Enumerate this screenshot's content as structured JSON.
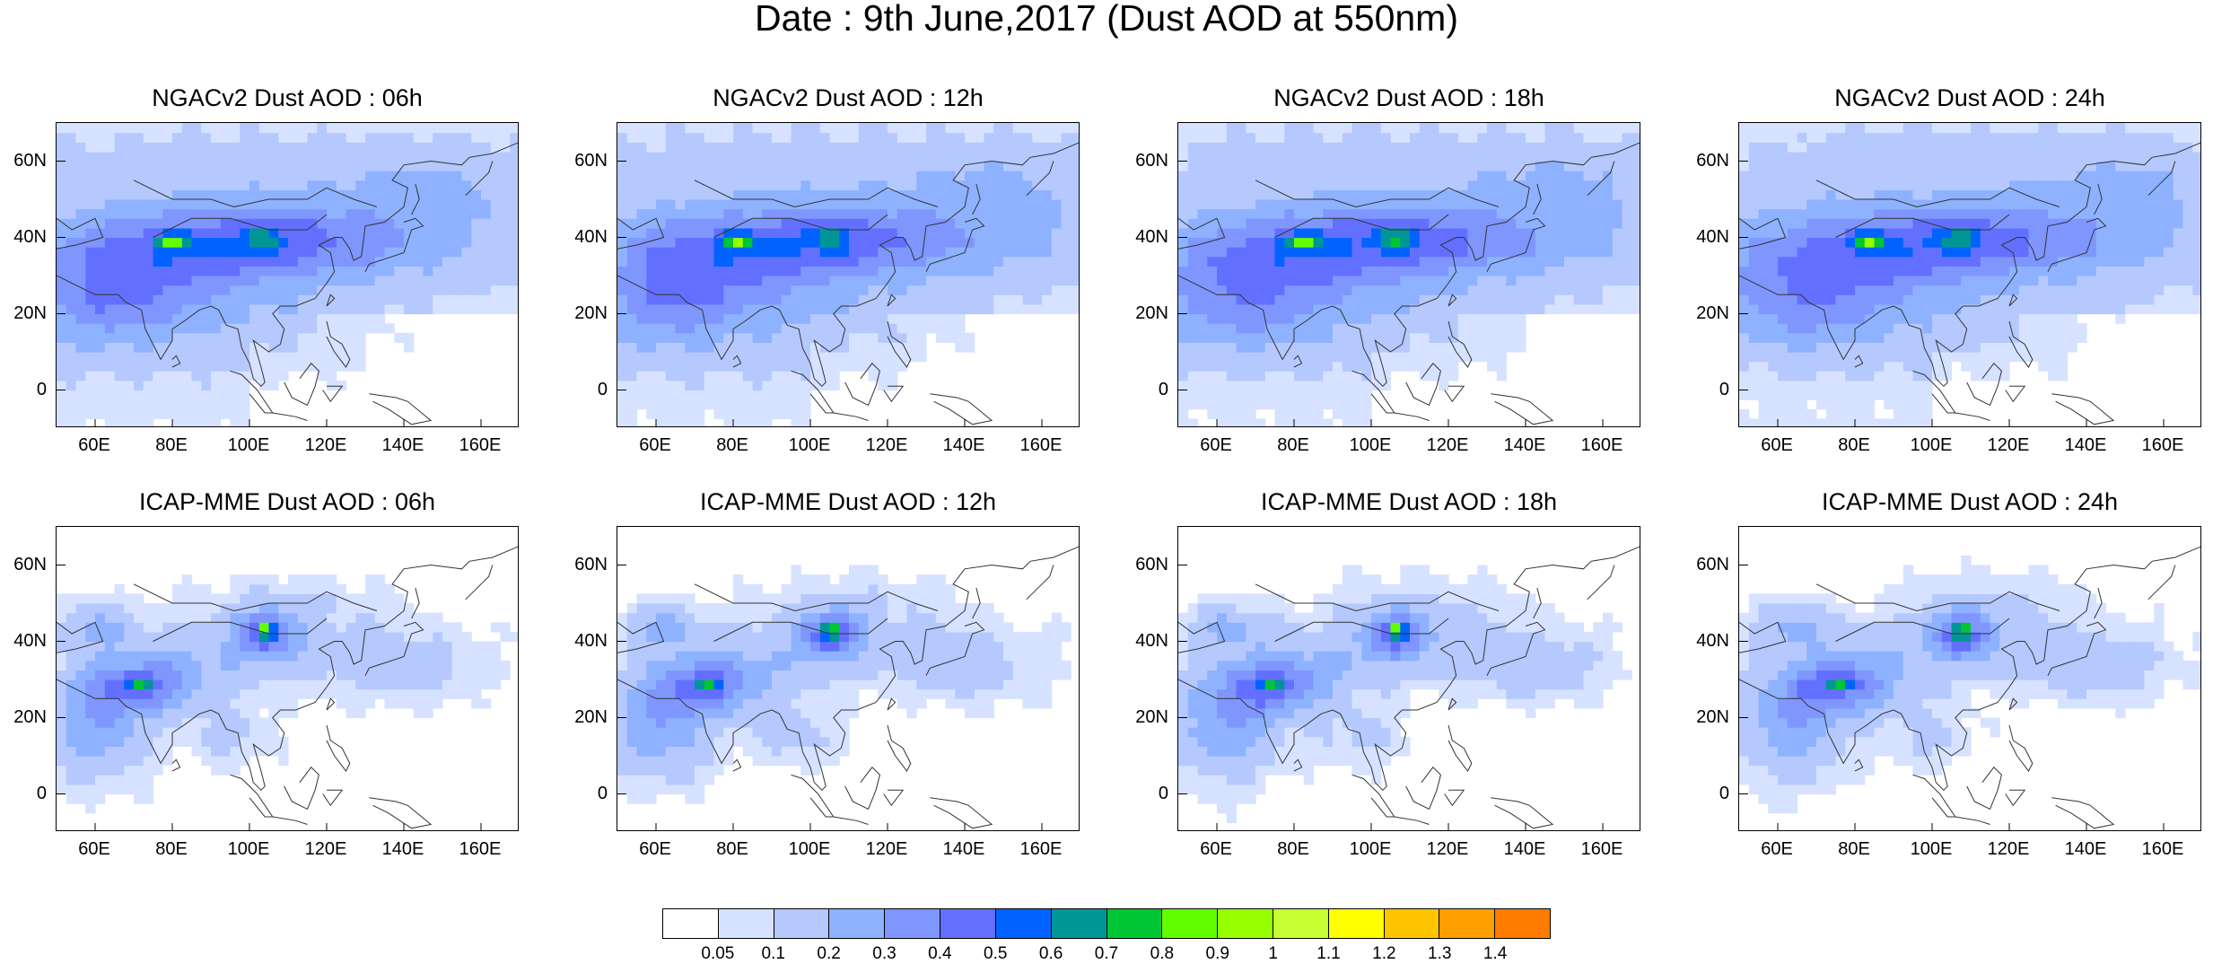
{
  "title": "Date : 9th June,2017 (Dust AOD at 550nm)",
  "panels": [
    {
      "title": "NGACv2 Dust AOD : 06h",
      "model": "ngac"
    },
    {
      "title": "NGACv2 Dust AOD : 12h",
      "model": "ngac"
    },
    {
      "title": "NGACv2 Dust AOD : 18h",
      "model": "ngac"
    },
    {
      "title": "NGACv2 Dust AOD : 24h",
      "model": "ngac"
    },
    {
      "title": "ICAP-MME Dust AOD : 06h",
      "model": "icap"
    },
    {
      "title": "ICAP-MME Dust AOD : 12h",
      "model": "icap"
    },
    {
      "title": "ICAP-MME Dust AOD : 18h",
      "model": "icap"
    },
    {
      "title": "ICAP-MME Dust AOD : 24h",
      "model": "icap"
    }
  ],
  "lat_labels": [
    "60N",
    "40N",
    "20N",
    "0"
  ],
  "lon_labels": [
    "60E",
    "80E",
    "100E",
    "120E",
    "140E",
    "160E"
  ],
  "map_extent": {
    "lon": [
      50,
      170
    ],
    "lat": [
      -10,
      70
    ]
  },
  "colorbar": {
    "labels": [
      "0.05",
      "0.1",
      "0.2",
      "0.3",
      "0.4",
      "0.5",
      "0.6",
      "0.7",
      "0.8",
      "0.9",
      "1",
      "1.1",
      "1.2",
      "1.3",
      "1.4"
    ],
    "colors": [
      "#ffffff",
      "#d6e2ff",
      "#b5c9ff",
      "#8eb2ff",
      "#7f96ff",
      "#6370ff",
      "#0063ff",
      "#009696",
      "#00c633",
      "#63ff00",
      "#96ff00",
      "#c6ff33",
      "#ffff00",
      "#ffc600",
      "#ffa000",
      "#ff7c00",
      "#ff1900"
    ]
  }
}
